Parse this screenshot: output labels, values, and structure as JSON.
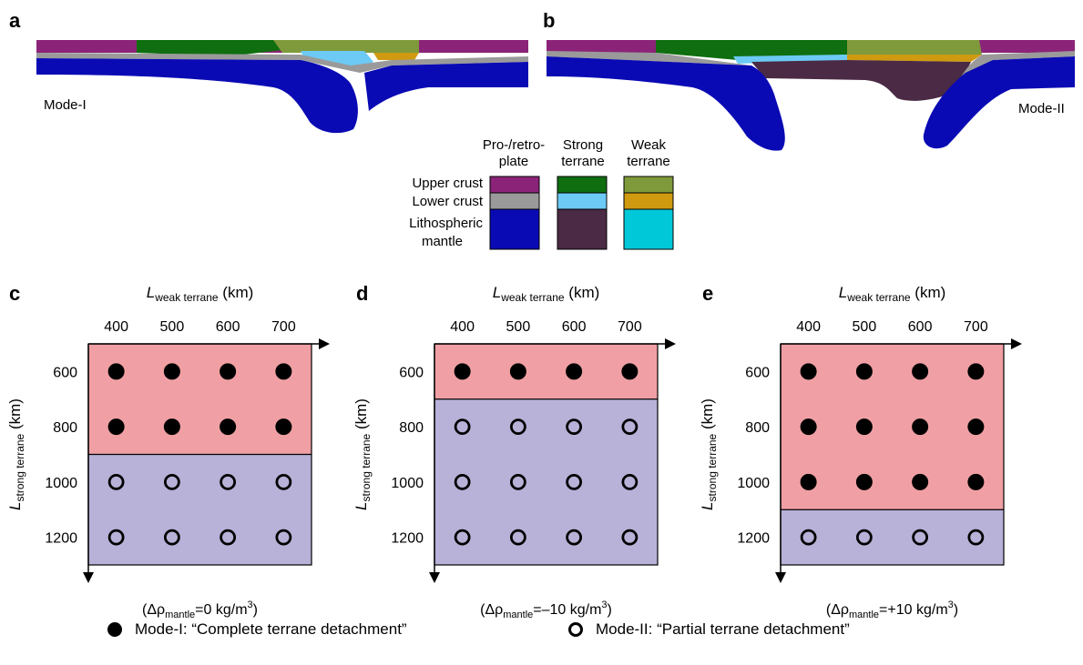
{
  "panels": {
    "a": "a",
    "b": "b",
    "c": "c",
    "d": "d",
    "e": "e",
    "mode1_label": "Mode-I",
    "mode2_label": "Mode-II"
  },
  "colors": {
    "plate_upper": "#8b2478",
    "plate_lower": "#9a9a9a",
    "plate_mantle": "#0a0ab4",
    "strong_upper": "#0f6e0f",
    "strong_lower": "#6ccaf5",
    "strong_mantle": "#4a2a44",
    "weak_upper": "#7f9a3a",
    "weak_lower": "#cf9a10",
    "weak_mantle": "#00c8d8",
    "mode1_region": "#f0a0a4",
    "mode2_region": "#b8b2d8"
  },
  "material_legend": {
    "col_headers": [
      [
        "Pro-/retro-",
        "plate"
      ],
      [
        "Strong",
        "terrane"
      ],
      [
        "Weak",
        "terrane"
      ]
    ],
    "row_labels": [
      "Upper crust",
      "Lower crust",
      [
        "Lithospheric",
        "mantle"
      ]
    ]
  },
  "mode_legend": {
    "mode1": "Mode-I: “Complete terrane detachment”",
    "mode2": "Mode-II: “Partial terrane detachment”"
  },
  "chart_data": [
    {
      "type": "scatter",
      "panel": "c",
      "xlabel": "L",
      "xlabel_sub": "weak terrane",
      "xlabel_unit": " (km)",
      "ylabel": "L",
      "ylabel_sub": "strong terrane",
      "ylabel_unit": " (km)",
      "x": [
        400,
        500,
        600,
        700
      ],
      "y": [
        600,
        800,
        1000,
        1200
      ],
      "xlim": [
        350,
        750
      ],
      "ylim": [
        500,
        1300
      ],
      "y_inverted": true,
      "mode1_max_strong": 800,
      "caption": [
        "(Δρ",
        "mantle",
        "=0 kg/m",
        "3",
        ")"
      ],
      "points": [
        {
          "x": 400,
          "y": 600,
          "mode": "I"
        },
        {
          "x": 500,
          "y": 600,
          "mode": "I"
        },
        {
          "x": 600,
          "y": 600,
          "mode": "I"
        },
        {
          "x": 700,
          "y": 600,
          "mode": "I"
        },
        {
          "x": 400,
          "y": 800,
          "mode": "I"
        },
        {
          "x": 500,
          "y": 800,
          "mode": "I"
        },
        {
          "x": 600,
          "y": 800,
          "mode": "I"
        },
        {
          "x": 700,
          "y": 800,
          "mode": "I"
        },
        {
          "x": 400,
          "y": 1000,
          "mode": "II"
        },
        {
          "x": 500,
          "y": 1000,
          "mode": "II"
        },
        {
          "x": 600,
          "y": 1000,
          "mode": "II"
        },
        {
          "x": 700,
          "y": 1000,
          "mode": "II"
        },
        {
          "x": 400,
          "y": 1200,
          "mode": "II"
        },
        {
          "x": 500,
          "y": 1200,
          "mode": "II"
        },
        {
          "x": 600,
          "y": 1200,
          "mode": "II"
        },
        {
          "x": 700,
          "y": 1200,
          "mode": "II"
        }
      ]
    },
    {
      "type": "scatter",
      "panel": "d",
      "xlabel": "L",
      "xlabel_sub": "weak terrane",
      "xlabel_unit": " (km)",
      "ylabel": "L",
      "ylabel_sub": "strong terrane",
      "ylabel_unit": " (km)",
      "x": [
        400,
        500,
        600,
        700
      ],
      "y": [
        600,
        800,
        1000,
        1200
      ],
      "xlim": [
        350,
        750
      ],
      "ylim": [
        500,
        1300
      ],
      "y_inverted": true,
      "mode1_max_strong": 600,
      "caption": [
        "(Δρ",
        "mantle",
        "=–10 kg/m",
        "3",
        ")"
      ],
      "points": [
        {
          "x": 400,
          "y": 600,
          "mode": "I"
        },
        {
          "x": 500,
          "y": 600,
          "mode": "I"
        },
        {
          "x": 600,
          "y": 600,
          "mode": "I"
        },
        {
          "x": 700,
          "y": 600,
          "mode": "I"
        },
        {
          "x": 400,
          "y": 800,
          "mode": "II"
        },
        {
          "x": 500,
          "y": 800,
          "mode": "II"
        },
        {
          "x": 600,
          "y": 800,
          "mode": "II"
        },
        {
          "x": 700,
          "y": 800,
          "mode": "II"
        },
        {
          "x": 400,
          "y": 1000,
          "mode": "II"
        },
        {
          "x": 500,
          "y": 1000,
          "mode": "II"
        },
        {
          "x": 600,
          "y": 1000,
          "mode": "II"
        },
        {
          "x": 700,
          "y": 1000,
          "mode": "II"
        },
        {
          "x": 400,
          "y": 1200,
          "mode": "II"
        },
        {
          "x": 500,
          "y": 1200,
          "mode": "II"
        },
        {
          "x": 600,
          "y": 1200,
          "mode": "II"
        },
        {
          "x": 700,
          "y": 1200,
          "mode": "II"
        }
      ]
    },
    {
      "type": "scatter",
      "panel": "e",
      "xlabel": "L",
      "xlabel_sub": "weak terrane",
      "xlabel_unit": " (km)",
      "ylabel": "L",
      "ylabel_sub": "strong terrane",
      "ylabel_unit": " (km)",
      "x": [
        400,
        500,
        600,
        700
      ],
      "y": [
        600,
        800,
        1000,
        1200
      ],
      "xlim": [
        350,
        750
      ],
      "ylim": [
        500,
        1300
      ],
      "y_inverted": true,
      "mode1_max_strong": 1000,
      "caption": [
        "(Δρ",
        "mantle",
        "=+10 kg/m",
        "3",
        ")"
      ],
      "points": [
        {
          "x": 400,
          "y": 600,
          "mode": "I"
        },
        {
          "x": 500,
          "y": 600,
          "mode": "I"
        },
        {
          "x": 600,
          "y": 600,
          "mode": "I"
        },
        {
          "x": 700,
          "y": 600,
          "mode": "I"
        },
        {
          "x": 400,
          "y": 800,
          "mode": "I"
        },
        {
          "x": 500,
          "y": 800,
          "mode": "I"
        },
        {
          "x": 600,
          "y": 800,
          "mode": "I"
        },
        {
          "x": 700,
          "y": 800,
          "mode": "I"
        },
        {
          "x": 400,
          "y": 1000,
          "mode": "I"
        },
        {
          "x": 500,
          "y": 1000,
          "mode": "I"
        },
        {
          "x": 600,
          "y": 1000,
          "mode": "I"
        },
        {
          "x": 700,
          "y": 1000,
          "mode": "I"
        },
        {
          "x": 400,
          "y": 1200,
          "mode": "II"
        },
        {
          "x": 500,
          "y": 1200,
          "mode": "II"
        },
        {
          "x": 600,
          "y": 1200,
          "mode": "II"
        },
        {
          "x": 700,
          "y": 1200,
          "mode": "II"
        }
      ]
    }
  ]
}
